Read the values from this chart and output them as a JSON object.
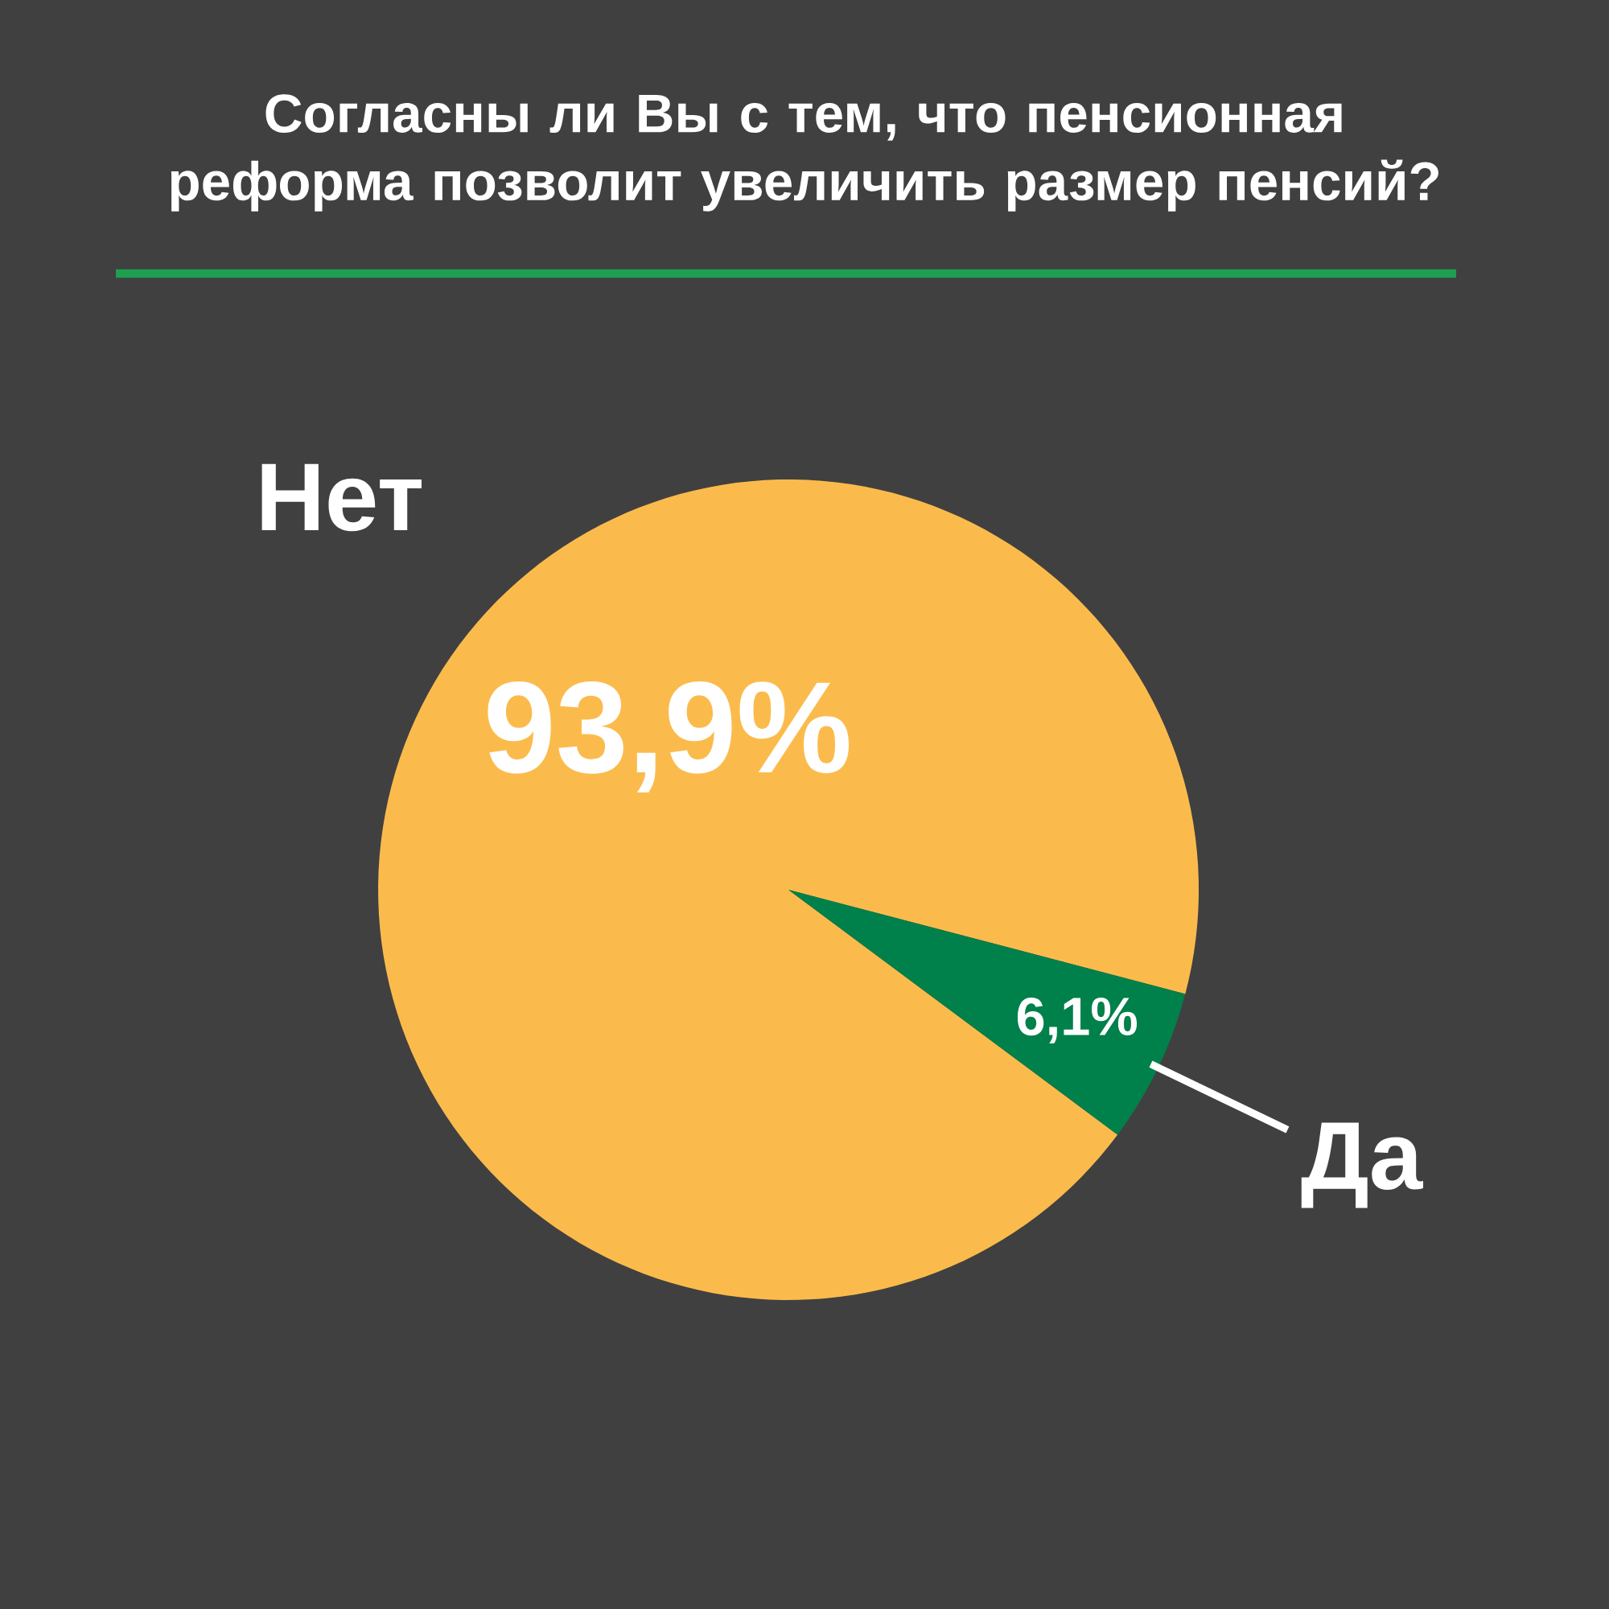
{
  "chart_data": {
    "type": "pie",
    "title": "Согласны ли Вы с тем, что пенсионная реформа позволит увеличить размер пенсий?",
    "categories": [
      "Нет",
      "Да"
    ],
    "values": [
      93.9,
      6.1
    ],
    "value_labels": [
      "93,9%",
      "6,1%"
    ],
    "colors": [
      "#fbbb4c",
      "#00804a"
    ]
  }
}
